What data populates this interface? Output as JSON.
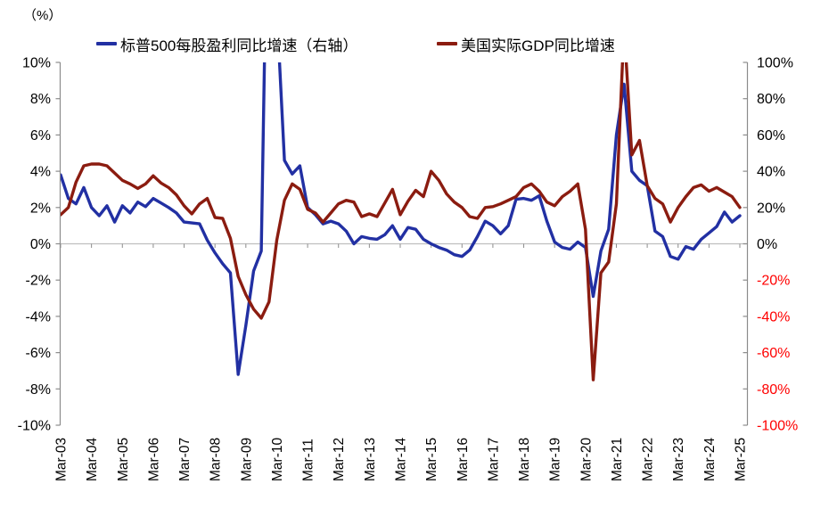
{
  "header": {
    "unit_label": "（%）"
  },
  "chart_data": {
    "type": "line",
    "title": "",
    "x_tick_labels": [
      "Mar-03",
      "Mar-04",
      "Mar-05",
      "Mar-06",
      "Mar-07",
      "Mar-08",
      "Mar-09",
      "Mar-10",
      "Mar-11",
      "Mar-12",
      "Mar-13",
      "Mar-14",
      "Mar-15",
      "Mar-16",
      "Mar-17",
      "Mar-18",
      "Mar-19",
      "Mar-20",
      "Mar-21",
      "Mar-22",
      "Mar-23",
      "Mar-24",
      "Mar-25"
    ],
    "quarters_per_x_tick": 4,
    "left_axis": {
      "min": -10,
      "max": 10,
      "step": 2,
      "ticks": [
        "10%",
        "8%",
        "6%",
        "4%",
        "2%",
        "0%",
        "-2%",
        "-4%",
        "-6%",
        "-8%",
        "-10%"
      ]
    },
    "right_axis": {
      "min": -100,
      "max": 100,
      "step": 20,
      "ticks": [
        "100%",
        "80%",
        "60%",
        "40%",
        "20%",
        "0%",
        "-20%",
        "-40%",
        "-60%",
        "-80%",
        "-100%"
      ],
      "negative_tick_color": "#FF0000"
    },
    "grid": {
      "zero_line_only": true,
      "zero_line_color": "#BFBFBF",
      "axis_color": "#8C8C8C"
    },
    "legend_position": "top",
    "series": [
      {
        "name": "标普500每股盈利同比增速（右轴）",
        "axis": "right",
        "color": "#2230A3",
        "values": [
          38,
          25,
          22,
          31,
          20,
          15.5,
          21,
          12,
          21,
          17,
          23,
          20.5,
          25,
          22.5,
          20,
          17,
          12,
          11.5,
          11,
          2,
          -5,
          -11,
          -16,
          -72,
          -45,
          -15,
          -4,
          250,
          130,
          46,
          38.5,
          43,
          20,
          16,
          11,
          12.5,
          11,
          7,
          0,
          4,
          3,
          2.5,
          5,
          10,
          2.5,
          9,
          8,
          2.5,
          0,
          -2,
          -3.5,
          -6,
          -7,
          -3.5,
          4,
          12.5,
          10,
          5.5,
          10,
          24.5,
          25,
          24,
          26.5,
          12.5,
          1,
          -2,
          -3,
          1,
          -2,
          -29,
          -4,
          8,
          60,
          88,
          40,
          35,
          32,
          7,
          4,
          -7,
          -8.5,
          -1.5,
          -3,
          2.5,
          6,
          9.5,
          17.5,
          12,
          15.5
        ]
      },
      {
        "name": "美国实际GDP同比增速",
        "axis": "left",
        "color": "#8B1C10",
        "values": [
          1.6,
          2.0,
          3.4,
          4.3,
          4.4,
          4.4,
          4.3,
          3.9,
          3.5,
          3.3,
          3.05,
          3.3,
          3.75,
          3.35,
          3.1,
          2.7,
          2.1,
          1.65,
          2.2,
          2.5,
          1.45,
          1.4,
          0.3,
          -1.8,
          -2.8,
          -3.6,
          -4.1,
          -3.2,
          0.2,
          2.4,
          3.3,
          3.0,
          1.9,
          1.7,
          1.2,
          1.7,
          2.2,
          2.4,
          2.3,
          1.5,
          1.65,
          1.5,
          2.25,
          3.0,
          1.6,
          2.35,
          2.95,
          2.6,
          4.0,
          3.5,
          2.75,
          2.3,
          2.0,
          1.5,
          1.4,
          2.0,
          2.05,
          2.2,
          2.4,
          2.6,
          3.1,
          3.3,
          2.9,
          2.3,
          2.1,
          2.6,
          2.9,
          3.3,
          0.8,
          -7.5,
          -1.6,
          -1.0,
          2.2,
          12.0,
          4.9,
          5.7,
          3.2,
          2.5,
          2.2,
          1.2,
          2.0,
          2.6,
          3.1,
          3.25,
          2.9,
          3.1,
          2.85,
          2.6,
          2.0
        ]
      }
    ]
  }
}
